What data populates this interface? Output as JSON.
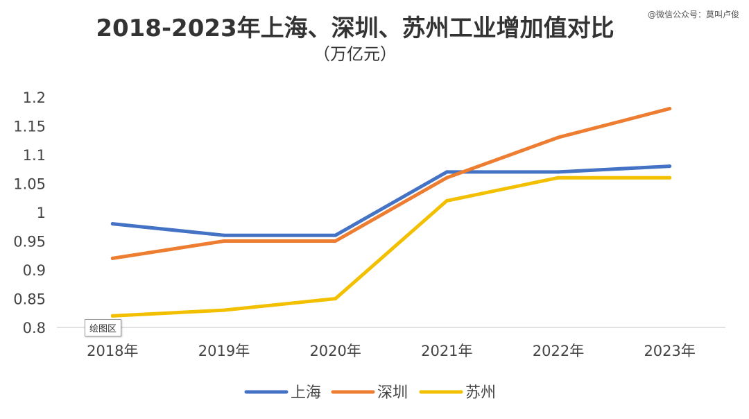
{
  "watermark": "@微信公众号：莫叫卢俊",
  "tooltip": "绘图区",
  "chart_data": {
    "type": "line",
    "title": "2018-2023年上海、深圳、苏州工业增加值对比",
    "subtitle": "（万亿元）",
    "categories": [
      "2018年",
      "2019年",
      "2020年",
      "2021年",
      "2022年",
      "2023年"
    ],
    "ylim": [
      0.8,
      1.2
    ],
    "ytick_labels": [
      "0.8",
      "0.85",
      "0.9",
      "0.95",
      "1",
      "1.05",
      "1.1",
      "1.15",
      "1.2"
    ],
    "yticks": [
      0.8,
      0.85,
      0.9,
      0.95,
      1.0,
      1.05,
      1.1,
      1.15,
      1.2
    ],
    "grid": false,
    "legend": "bottom",
    "series": [
      {
        "name": "上海",
        "color": "#4472C4",
        "values": [
          0.98,
          0.96,
          0.96,
          1.07,
          1.07,
          1.08
        ]
      },
      {
        "name": "深圳",
        "color": "#ED7D31",
        "values": [
          0.92,
          0.95,
          0.95,
          1.06,
          1.13,
          1.18
        ]
      },
      {
        "name": "苏州",
        "color": "#F2C000",
        "values": [
          0.82,
          0.83,
          0.85,
          1.02,
          1.06,
          1.06
        ]
      }
    ]
  }
}
